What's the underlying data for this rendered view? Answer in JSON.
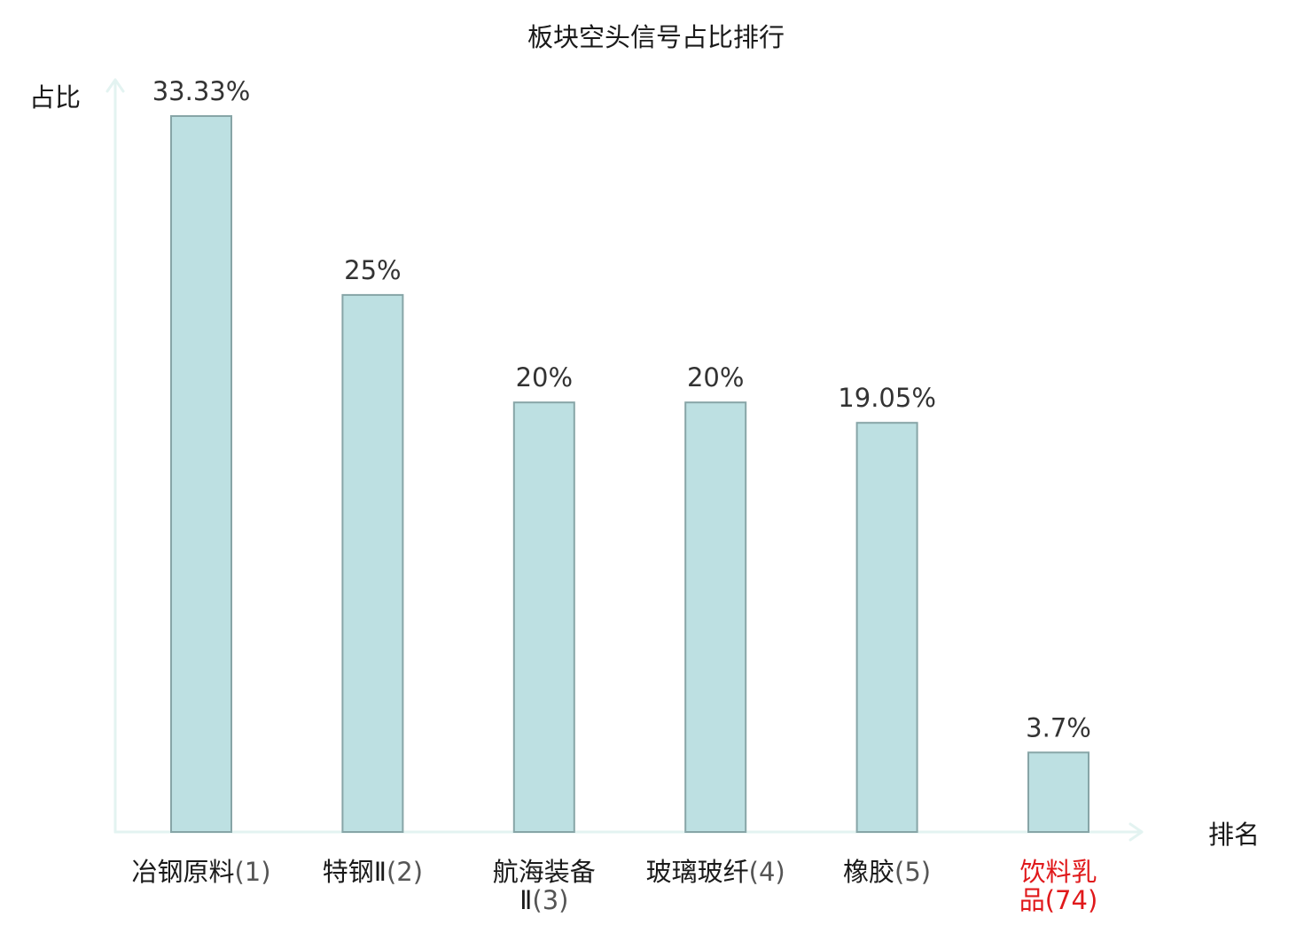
{
  "chart_data": {
    "type": "bar",
    "title": "板块空头信号占比排行",
    "ylabel": "占比",
    "xlabel": "排名",
    "ylim": [
      0,
      35
    ],
    "grid": false,
    "legend": "none",
    "categories": [
      {
        "name": "冶钢原料",
        "rank": "(1)",
        "highlight": false
      },
      {
        "name": "特钢Ⅱ",
        "rank": "(2)",
        "highlight": false
      },
      {
        "name": "航海装备Ⅱ",
        "rank": "(3)",
        "highlight": false
      },
      {
        "name": "玻璃玻纤",
        "rank": "(4)",
        "highlight": false
      },
      {
        "name": "橡胶",
        "rank": "(5)",
        "highlight": false
      },
      {
        "name": "饮料乳品",
        "rank": "(74)",
        "highlight": true
      }
    ],
    "values": [
      33.33,
      25,
      20,
      20,
      19.05,
      3.7
    ],
    "value_labels": [
      "33.33%",
      "25%",
      "20%",
      "20%",
      "19.05%",
      "3.7%"
    ],
    "colors": {
      "bar_fill": "#bde0e2",
      "bar_stroke": "#87a5a7",
      "axis": "#e3f3f1",
      "text": "#333333",
      "label_text": "#1a1a1a",
      "highlight": "#e0191b"
    }
  }
}
